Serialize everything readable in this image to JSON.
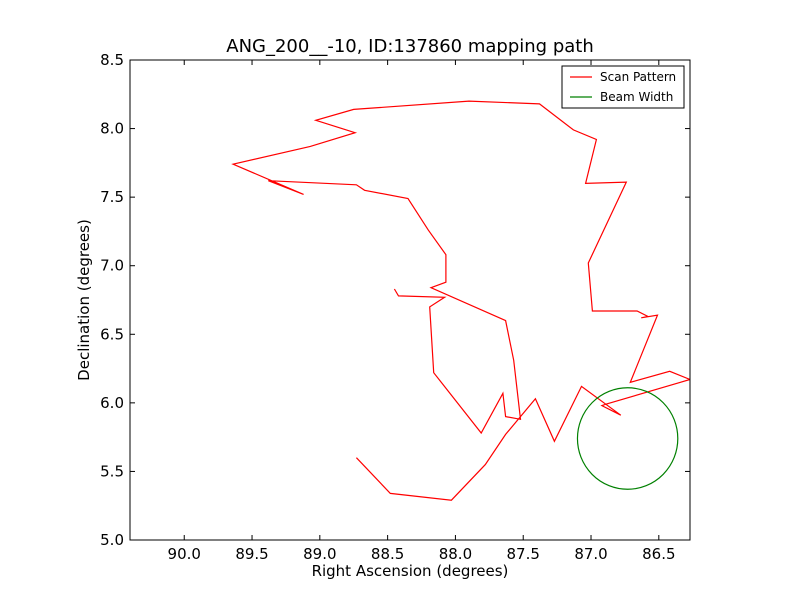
{
  "chart_data": {
    "type": "line",
    "title": "ANG_200__-10, ID:137860 mapping path",
    "xlabel": "Right Ascension (degrees)",
    "ylabel": "Declination (degrees)",
    "xlim": [
      90.4,
      86.27
    ],
    "ylim": [
      5.0,
      8.5
    ],
    "x_inverted": true,
    "grid": false,
    "legend_position": "top-right",
    "xticks": [
      90.0,
      89.5,
      89.0,
      88.5,
      88.0,
      87.5,
      87.0,
      86.5
    ],
    "xtick_labels": [
      "90.0",
      "89.5",
      "89.0",
      "88.5",
      "88.0",
      "87.5",
      "87.0",
      "86.5"
    ],
    "yticks": [
      5.0,
      5.5,
      6.0,
      6.5,
      7.0,
      7.5,
      8.0,
      8.5
    ],
    "ytick_labels": [
      "5.0",
      "5.5",
      "6.0",
      "6.5",
      "7.0",
      "7.5",
      "8.0",
      "8.5"
    ],
    "series": [
      {
        "name": "Scan Pattern",
        "color": "#ff0000",
        "kind": "line",
        "x": [
          88.73,
          88.48,
          88.03,
          87.78,
          87.63,
          87.41,
          87.27,
          87.07,
          86.78,
          86.92,
          86.89,
          86.27,
          86.42,
          86.71,
          86.51,
          86.63,
          86.58,
          86.66,
          86.99,
          87.02,
          86.74,
          87.04,
          86.96,
          87.13,
          87.38,
          87.9,
          88.75,
          89.03,
          88.74,
          89.07,
          89.64,
          89.12,
          89.38,
          88.73,
          88.67,
          88.35,
          88.2,
          88.07,
          88.07,
          88.18,
          87.63,
          87.57,
          87.52,
          87.63,
          87.65,
          87.81,
          88.16,
          88.19,
          88.08,
          88.42,
          88.45
        ],
        "y": [
          5.6,
          5.34,
          5.29,
          5.55,
          5.77,
          6.03,
          5.72,
          6.12,
          5.91,
          5.98,
          5.99,
          6.17,
          6.23,
          6.15,
          6.64,
          6.62,
          6.63,
          6.67,
          6.67,
          7.02,
          7.61,
          7.6,
          7.92,
          7.99,
          8.18,
          8.2,
          8.14,
          8.06,
          7.97,
          7.87,
          7.74,
          7.52,
          7.62,
          7.59,
          7.55,
          7.49,
          7.26,
          7.08,
          6.88,
          6.84,
          6.6,
          6.31,
          5.88,
          5.9,
          6.07,
          5.78,
          6.22,
          6.7,
          6.77,
          6.78,
          6.83
        ]
      },
      {
        "name": "Beam Width",
        "color": "#008000",
        "kind": "circle",
        "center": [
          86.73,
          5.74
        ],
        "radius": 0.37
      }
    ]
  }
}
